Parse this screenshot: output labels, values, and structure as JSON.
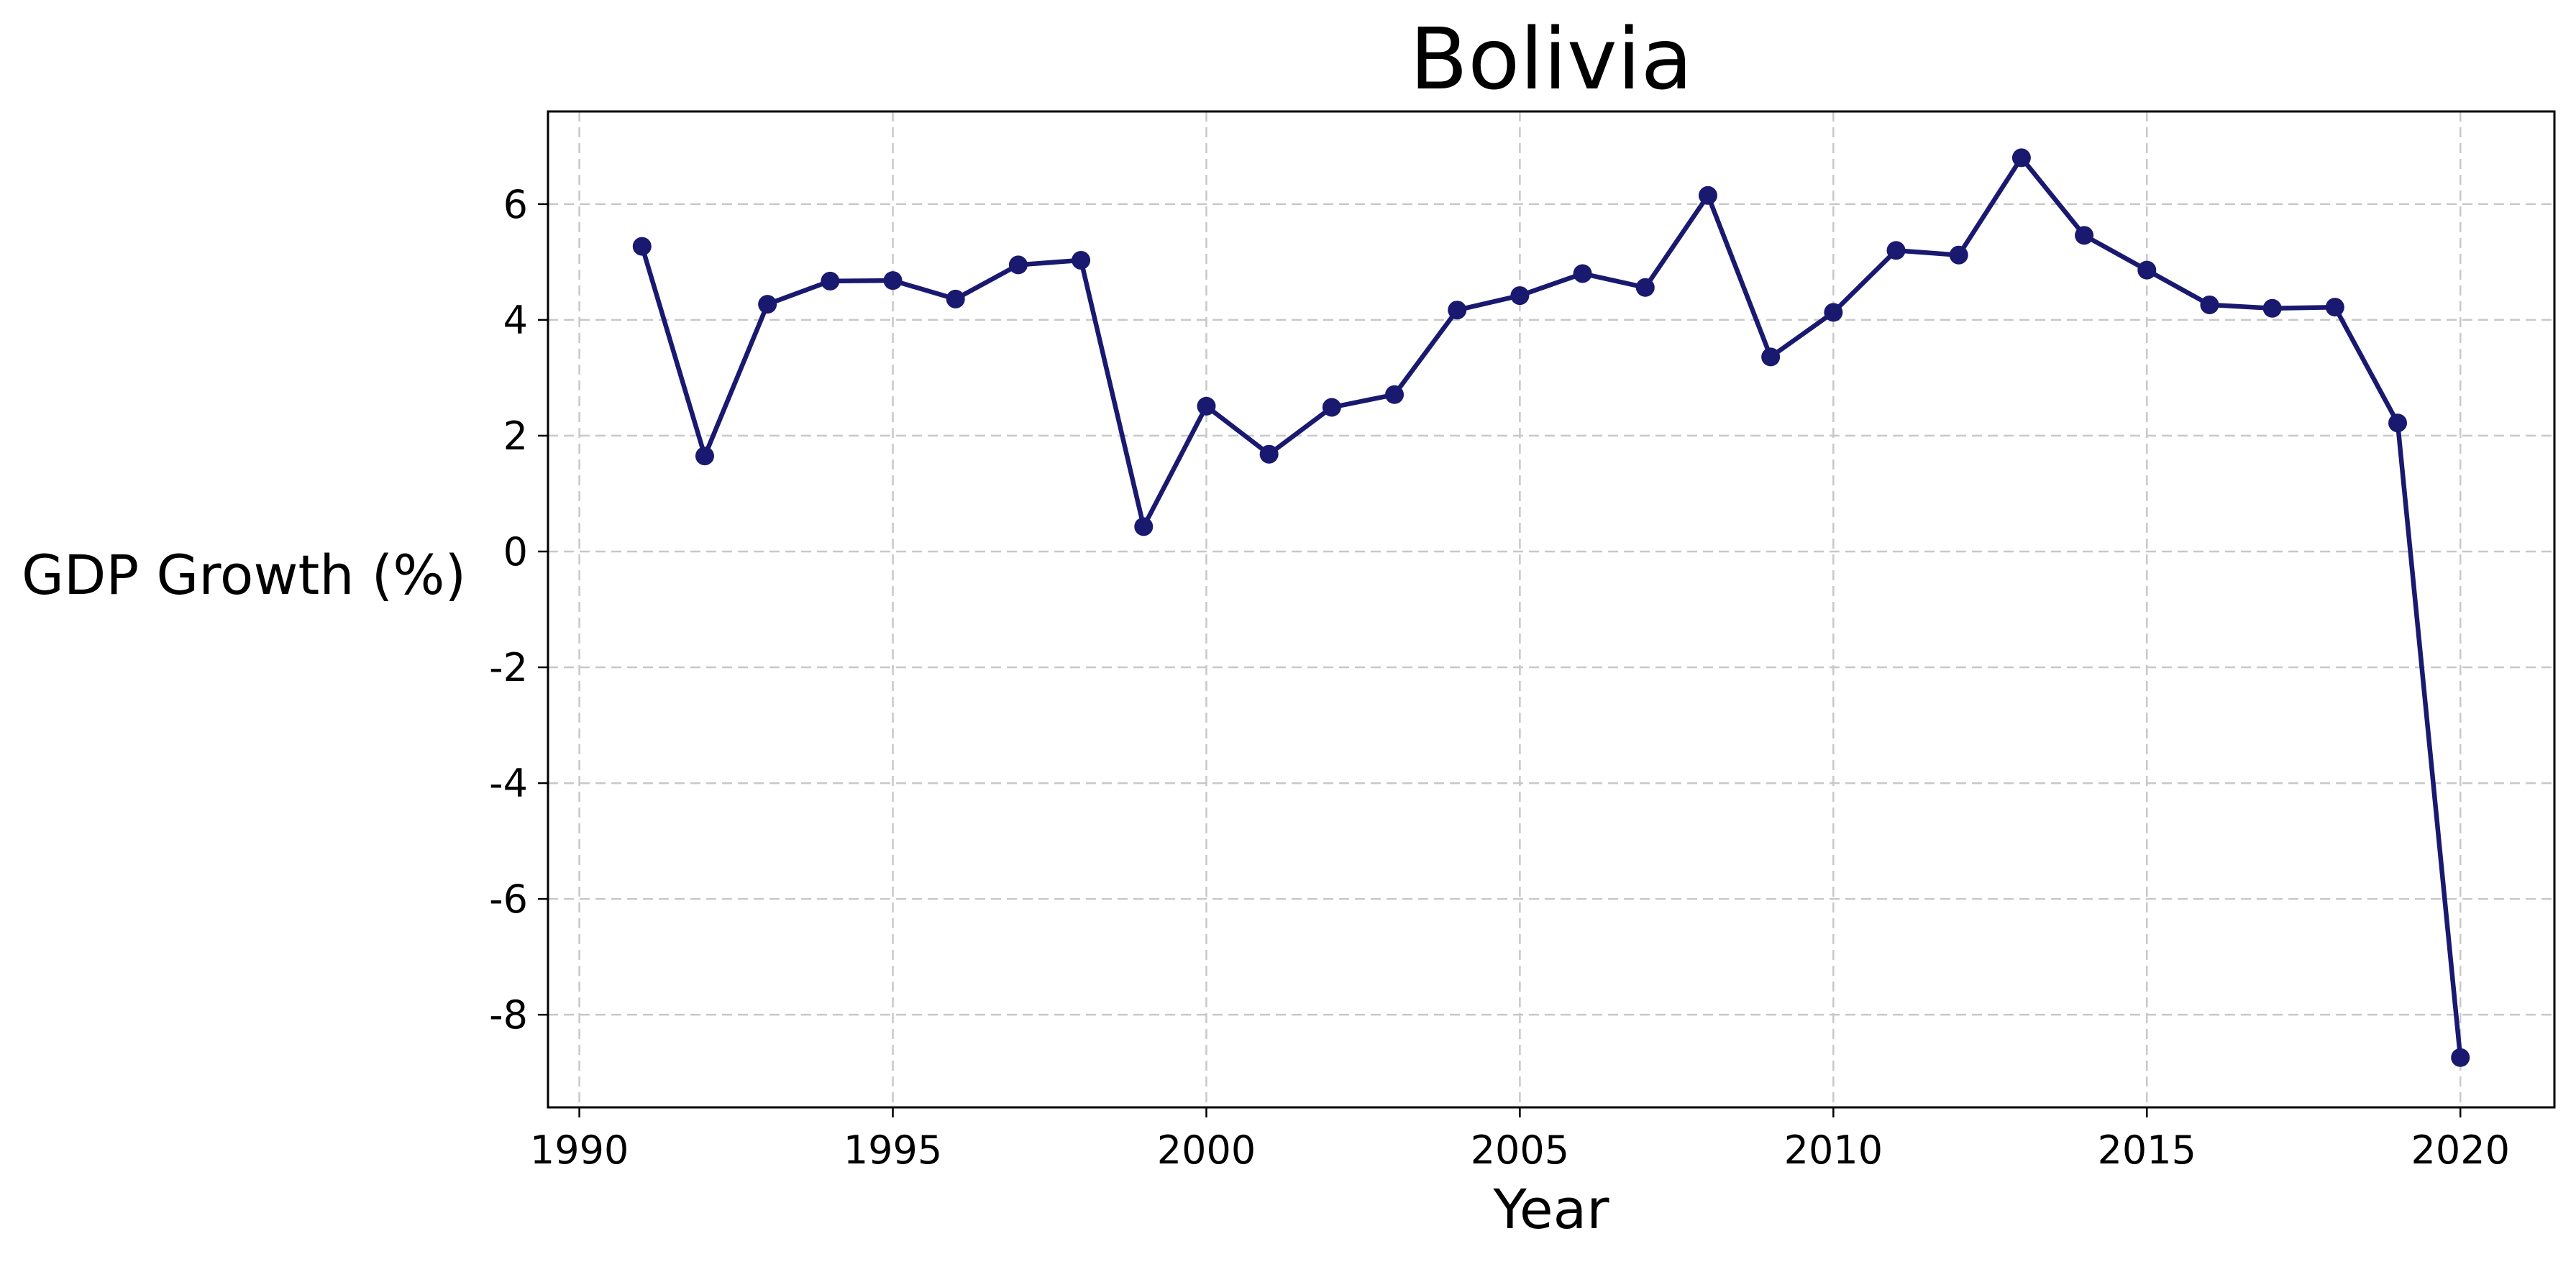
{
  "chart_data": {
    "type": "line",
    "title": "Bolivia",
    "xlabel": "Year",
    "ylabel": "GDP Growth (%)",
    "xlim": [
      1989.5,
      2021.5
    ],
    "ylim": [
      -9.6,
      7.6
    ],
    "xticks": [
      1990,
      1995,
      2000,
      2005,
      2010,
      2015,
      2020
    ],
    "yticks": [
      -8,
      -6,
      -4,
      -2,
      0,
      2,
      4,
      6
    ],
    "grid": true,
    "marker": "circle",
    "series": [
      {
        "color": "#191970",
        "x": [
          1991,
          1992,
          1993,
          1994,
          1995,
          1996,
          1997,
          1998,
          1999,
          2000,
          2001,
          2002,
          2003,
          2004,
          2005,
          2006,
          2007,
          2008,
          2009,
          2010,
          2011,
          2012,
          2013,
          2014,
          2015,
          2016,
          2017,
          2018,
          2019,
          2020
        ],
        "y": [
          5.27,
          1.65,
          4.27,
          4.67,
          4.68,
          4.36,
          4.95,
          5.03,
          0.43,
          2.51,
          1.68,
          2.49,
          2.71,
          4.17,
          4.42,
          4.8,
          4.56,
          6.15,
          3.36,
          4.13,
          5.2,
          5.12,
          6.8,
          5.46,
          4.86,
          4.26,
          4.2,
          4.22,
          2.22,
          -8.74
        ]
      }
    ]
  }
}
